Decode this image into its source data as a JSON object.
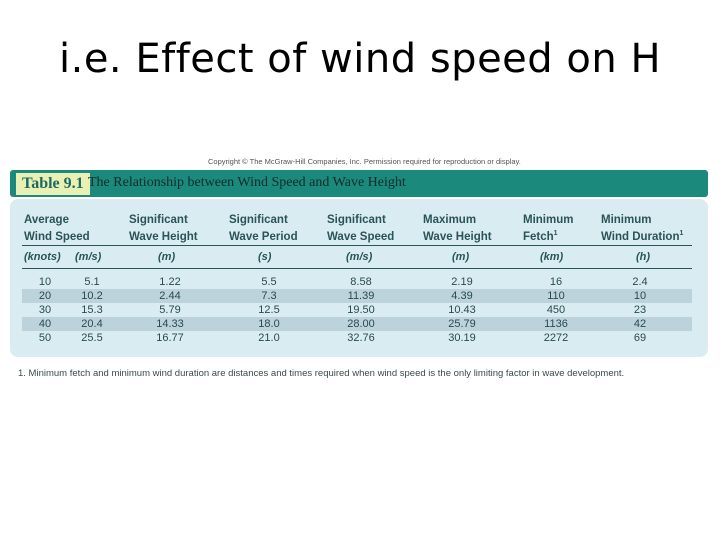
{
  "slide": {
    "title": "i.e. Effect of wind speed on H"
  },
  "copyright": "Copyright © The McGraw-Hill Companies, Inc. Permission required for reproduction or display.",
  "table": {
    "label": "Table 9.1",
    "title": "The Relationship between Wind Speed and Wave Height",
    "headers": [
      {
        "line1": "Average",
        "line2": "Wind Speed",
        "sup": ""
      },
      {
        "line1": "Significant",
        "line2": "Wave Height",
        "sup": ""
      },
      {
        "line1": "Significant",
        "line2": "Wave Period",
        "sup": ""
      },
      {
        "line1": "Significant",
        "line2": "Wave Speed",
        "sup": ""
      },
      {
        "line1": "Maximum",
        "line2": "Wave Height",
        "sup": ""
      },
      {
        "line1": "Minimum",
        "line2": "Fetch",
        "sup": "1"
      },
      {
        "line1": "Minimum",
        "line2": "Wind Duration",
        "sup": "1"
      }
    ],
    "units": [
      "(knots)",
      "(m/s)",
      "(m)",
      "(s)",
      "(m/s)",
      "(m)",
      "(km)",
      "(h)"
    ],
    "rows": [
      [
        "10",
        "5.1",
        "1.22",
        "5.5",
        "8.58",
        "2.19",
        "16",
        "2.4"
      ],
      [
        "20",
        "10.2",
        "2.44",
        "7.3",
        "11.39",
        "4.39",
        "110",
        "10"
      ],
      [
        "30",
        "15.3",
        "5.79",
        "12.5",
        "19.50",
        "10.43",
        "450",
        "23"
      ],
      [
        "40",
        "20.4",
        "14.33",
        "18.0",
        "28.00",
        "25.79",
        "1136",
        "42"
      ],
      [
        "50",
        "25.5",
        "16.77",
        "21.0",
        "32.76",
        "30.19",
        "2272",
        "69"
      ]
    ],
    "footnote": "1. Minimum fetch and minimum wind duration are distances and times required when wind speed is the only limiting factor in wave development."
  },
  "colors": {
    "banner": "#1b8a7c",
    "label_bg": "#e9f0b4",
    "panel": "#d9ecf2",
    "row_shade": "#bcd3db"
  }
}
